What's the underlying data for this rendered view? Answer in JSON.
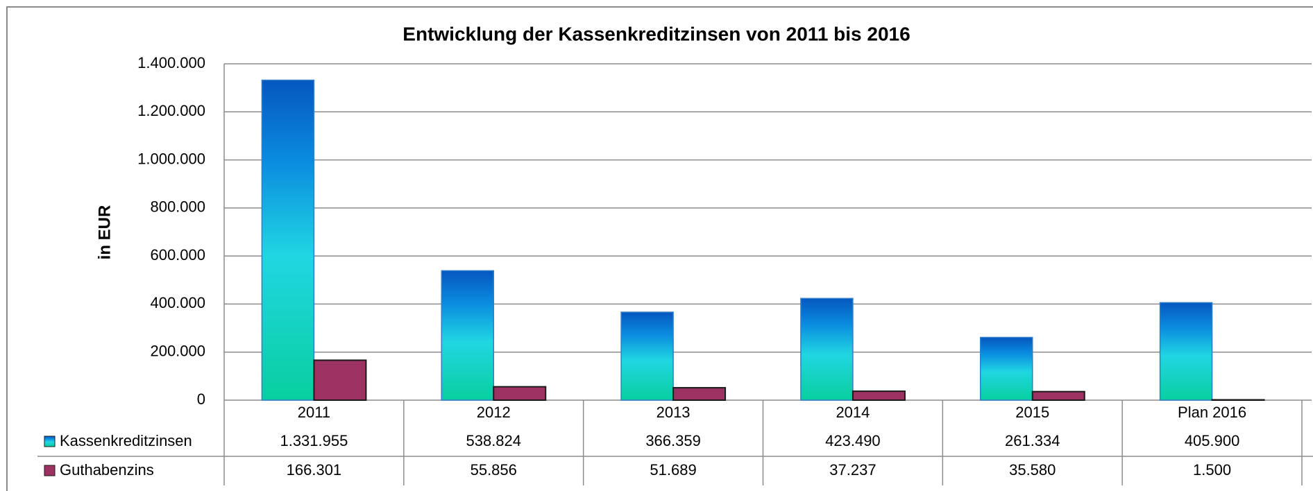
{
  "chart_data": {
    "type": "bar",
    "title": "Entwicklung der Kassenkreditzinsen von 2011 bis 2016",
    "y_label": "in EUR",
    "categories": [
      "2011",
      "2012",
      "2013",
      "2014",
      "2015",
      "Plan 2016"
    ],
    "series": [
      {
        "name": "Kassenkreditzinsen",
        "color": "#0a8be0",
        "values": [
          1331955,
          538824,
          366359,
          423490,
          261334,
          405900
        ],
        "value_labels": [
          "1.331.955",
          "538.824",
          "366.359",
          "423.490",
          "261.334",
          "405.900"
        ]
      },
      {
        "name": "Guthabenzins",
        "color": "#9b3262",
        "values": [
          166301,
          55856,
          51689,
          37237,
          35580,
          1500
        ],
        "value_labels": [
          "166.301",
          "55.856",
          "51.689",
          "37.237",
          "35.580",
          "1.500"
        ]
      }
    ],
    "ylim": [
      0,
      1400000
    ],
    "yticks": [
      0,
      {
        "value": 200000,
        "label": "200.000"
      },
      {
        "value": 400000,
        "label": "400.000"
      },
      {
        "value": 600000,
        "label": "600.000"
      },
      {
        "value": 800000,
        "label": "800.000"
      },
      {
        "value": 1000000,
        "label": "1.000.000"
      },
      {
        "value": 1200000,
        "label": "1.200.000"
      },
      {
        "value": 1400000,
        "label": "1.400.000"
      }
    ],
    "grid": true
  }
}
